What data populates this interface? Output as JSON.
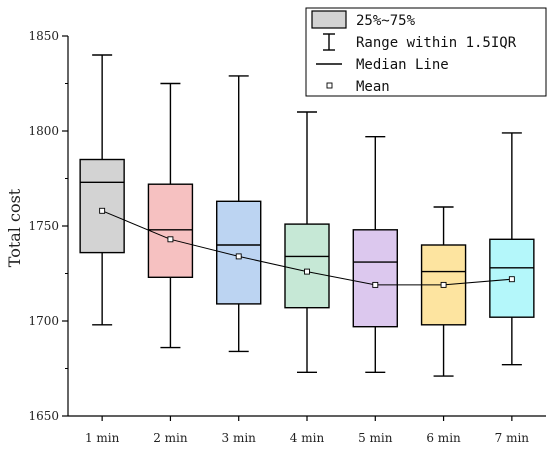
{
  "chart_data": {
    "type": "box",
    "categories": [
      "1 min",
      "2 min",
      "3 min",
      "4 min",
      "5 min",
      "6 min",
      "7 min"
    ],
    "ylabel": "Total cost",
    "xlabel": "",
    "ylim": [
      1650,
      1850
    ],
    "yticks": [
      1650,
      1700,
      1750,
      1800,
      1850
    ],
    "legend_position": "top-right",
    "legend": {
      "box": "25%~75%",
      "whisker": "Range within 1.5IQR",
      "median": "Median Line",
      "mean": "Mean"
    },
    "colors": [
      "#d3d3d3",
      "#f6c1c1",
      "#bcd4f2",
      "#c6e8d6",
      "#dcc8ee",
      "#fde4a0",
      "#b4f7fa"
    ],
    "boxes": [
      {
        "name": "1 min",
        "whisker_low": 1698,
        "q1": 1736,
        "median": 1773,
        "q3": 1785,
        "whisker_high": 1840,
        "mean": 1758
      },
      {
        "name": "2 min",
        "whisker_low": 1686,
        "q1": 1723,
        "median": 1748,
        "q3": 1772,
        "whisker_high": 1825,
        "mean": 1743
      },
      {
        "name": "3 min",
        "whisker_low": 1684,
        "q1": 1709,
        "median": 1740,
        "q3": 1763,
        "whisker_high": 1829,
        "mean": 1734
      },
      {
        "name": "4 min",
        "whisker_low": 1673,
        "q1": 1707,
        "median": 1734,
        "q3": 1751,
        "whisker_high": 1810,
        "mean": 1726
      },
      {
        "name": "5 min",
        "whisker_low": 1673,
        "q1": 1697,
        "median": 1731,
        "q3": 1748,
        "whisker_high": 1797,
        "mean": 1719
      },
      {
        "name": "6 min",
        "whisker_low": 1671,
        "q1": 1698,
        "median": 1726,
        "q3": 1740,
        "whisker_high": 1760,
        "mean": 1719
      },
      {
        "name": "7 min",
        "whisker_low": 1677,
        "q1": 1702,
        "median": 1728,
        "q3": 1743,
        "whisker_high": 1799,
        "mean": 1722
      }
    ]
  }
}
